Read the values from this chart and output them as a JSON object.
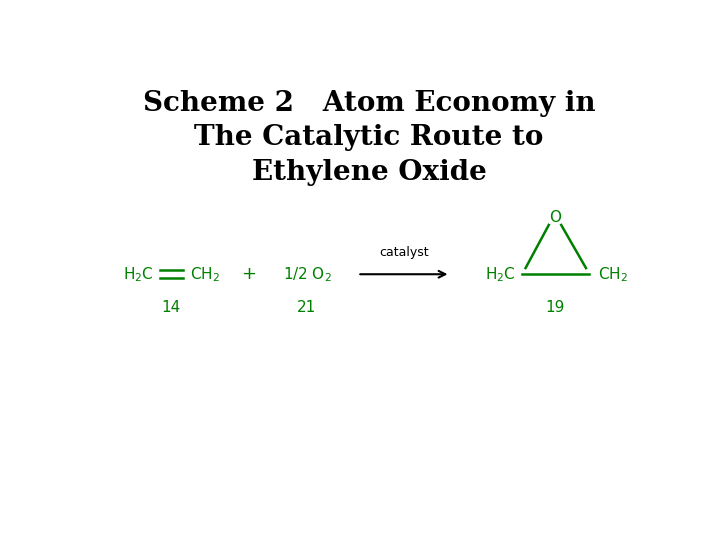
{
  "title_line1": "Scheme 2   Atom Economy in",
  "title_line2": "The Catalytic Route to",
  "title_line3": "Ethylene Oxide",
  "title_color": "#000000",
  "title_fontsize": 20,
  "chem_color": "#008000",
  "bg_color": "#ffffff",
  "ethylene_label": "14",
  "oxygen_label": "21",
  "product_label": "19",
  "catalyst_label": "catalyst",
  "chem_fontsize": 11,
  "label_fontsize": 11,
  "plus_fontsize": 13,
  "catalyst_fontsize": 9
}
